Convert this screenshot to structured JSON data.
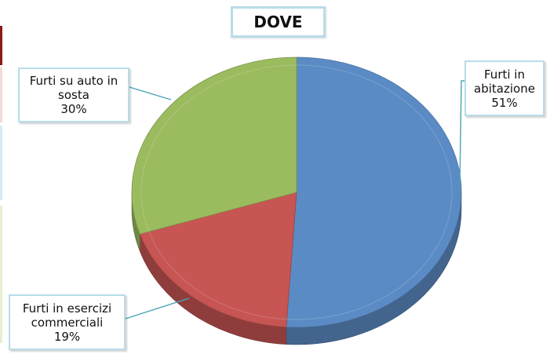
{
  "chart_data": {
    "type": "pie",
    "title": "DOVE",
    "slices": [
      {
        "label_lines": [
          "Furti in",
          "abitazione"
        ],
        "pct_label": "51%",
        "value": 51,
        "color": "#5b8bc4"
      },
      {
        "label_lines": [
          "Furti in esercizi",
          "commerciali"
        ],
        "pct_label": "19%",
        "value": 19,
        "color": "#c65553"
      },
      {
        "label_lines": [
          "Furti su auto in",
          "sosta"
        ],
        "pct_label": "30%",
        "value": 30,
        "color": "#9bbb5f"
      }
    ],
    "legend": "none",
    "style": "3d-tilted"
  },
  "colors": {
    "callout_border": "#b7dde8",
    "leader_line": "#4aa3b8",
    "edge_strips": [
      "#8b1a1a",
      "#f4d9d9",
      "#d6ebf2",
      "#e8efd2"
    ]
  }
}
